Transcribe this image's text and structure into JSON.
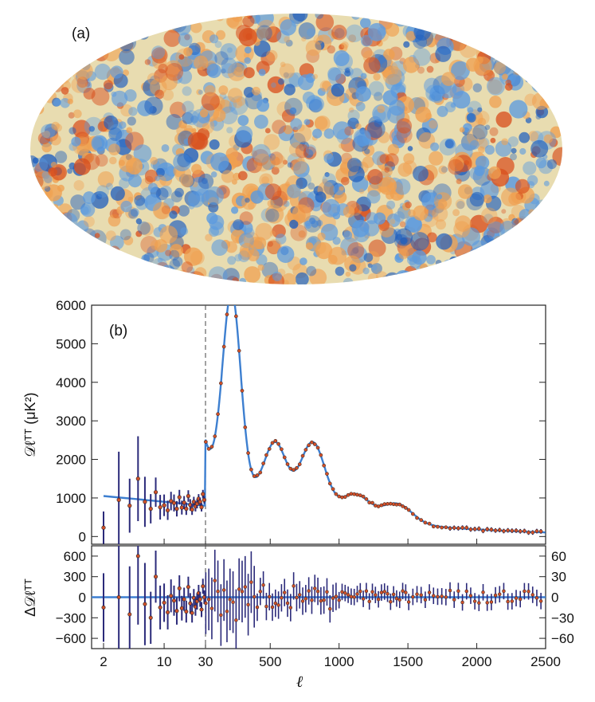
{
  "panel_a": {
    "label": "(a)",
    "image_description_name": "cmb-temperature-map",
    "colors": {
      "cold": "#1f5fbf",
      "mid_cold": "#5a9ae0",
      "neutral": "#e8dcb0",
      "warm": "#f0a050",
      "hot": "#d8501e"
    }
  },
  "chart_data": {
    "type": "scatter",
    "title": "",
    "panel_label": "(b)",
    "xlabel": "ℓ",
    "x_scale": "hybrid: logarithmic for ℓ < 30, linear for ℓ ≥ 30",
    "x_ticks": [
      "2",
      "10",
      "30",
      "500",
      "1000",
      "1500",
      "2000",
      "2500"
    ],
    "x_tick_values": [
      2,
      10,
      30,
      500,
      1000,
      1500,
      2000,
      2500
    ],
    "x_range": [
      2,
      2500
    ],
    "vline_at": 30,
    "top": {
      "ylabel": "𝒟ℓᵀᵀ (μK²)",
      "ylim": [
        -200,
        6000
      ],
      "y_ticks": [
        "0",
        "1000",
        "2000",
        "3000",
        "4000",
        "5000",
        "6000"
      ],
      "y_tick_values": [
        0,
        1000,
        2000,
        3000,
        4000,
        5000,
        6000
      ],
      "model_curve_color": "#3d7fd0",
      "errorbar_color": "#2b2a7a",
      "marker_color": "#d0502a",
      "low_ell_points": [
        {
          "x": 2,
          "y": 230,
          "err": 420
        },
        {
          "x": 3,
          "y": 950,
          "err": 1250
        },
        {
          "x": 4,
          "y": 800,
          "err": 700
        },
        {
          "x": 5,
          "y": 1500,
          "err": 1100
        },
        {
          "x": 6,
          "y": 900,
          "err": 650
        },
        {
          "x": 7,
          "y": 720,
          "err": 380
        },
        {
          "x": 8,
          "y": 1150,
          "err": 380
        },
        {
          "x": 9,
          "y": 760,
          "err": 320
        },
        {
          "x": 10,
          "y": 810,
          "err": 280
        },
        {
          "x": 11,
          "y": 680,
          "err": 250
        },
        {
          "x": 12,
          "y": 920,
          "err": 240
        },
        {
          "x": 13,
          "y": 870,
          "err": 220
        },
        {
          "x": 14,
          "y": 720,
          "err": 200
        },
        {
          "x": 15,
          "y": 1020,
          "err": 190
        },
        {
          "x": 16,
          "y": 750,
          "err": 180
        },
        {
          "x": 17,
          "y": 880,
          "err": 170
        },
        {
          "x": 18,
          "y": 720,
          "err": 160
        },
        {
          "x": 19,
          "y": 1050,
          "err": 150
        },
        {
          "x": 20,
          "y": 820,
          "err": 150
        },
        {
          "x": 21,
          "y": 700,
          "err": 140
        },
        {
          "x": 22,
          "y": 900,
          "err": 130
        },
        {
          "x": 23,
          "y": 780,
          "err": 130
        },
        {
          "x": 24,
          "y": 850,
          "err": 120
        },
        {
          "x": 25,
          "y": 980,
          "err": 120
        },
        {
          "x": 26,
          "y": 900,
          "err": 110
        },
        {
          "x": 27,
          "y": 760,
          "err": 110
        },
        {
          "x": 28,
          "y": 1100,
          "err": 110
        },
        {
          "x": 29,
          "y": 950,
          "err": 100
        }
      ]
    },
    "bottom": {
      "ylabel": "Δ𝒟ℓᵀᵀ",
      "left_y_ticks": [
        "600",
        "300",
        "0",
        "−300",
        "−600"
      ],
      "left_y_tick_values": [
        600,
        300,
        0,
        -300,
        -600
      ],
      "right_y_ticks": [
        "60",
        "30",
        "0",
        "−30",
        "−60"
      ],
      "right_y_tick_values": [
        60,
        30,
        0,
        -30,
        -60
      ],
      "left_ylim": [
        -750,
        750
      ],
      "right_ylim": [
        -75,
        75
      ],
      "low_ell_residuals": [
        {
          "x": 2,
          "y": -150,
          "err": 500
        },
        {
          "x": 3,
          "y": 0,
          "err": 1200
        },
        {
          "x": 4,
          "y": -250,
          "err": 700
        },
        {
          "x": 5,
          "y": 600,
          "err": 1000
        },
        {
          "x": 6,
          "y": -100,
          "err": 600
        },
        {
          "x": 7,
          "y": -300,
          "err": 380
        },
        {
          "x": 8,
          "y": 300,
          "err": 380
        },
        {
          "x": 9,
          "y": -150,
          "err": 320
        },
        {
          "x": 10,
          "y": -80,
          "err": 280
        },
        {
          "x": 11,
          "y": -220,
          "err": 250
        },
        {
          "x": 12,
          "y": 20,
          "err": 240
        },
        {
          "x": 13,
          "y": -50,
          "err": 220
        },
        {
          "x": 14,
          "y": -200,
          "err": 200
        },
        {
          "x": 15,
          "y": 130,
          "err": 190
        },
        {
          "x": 16,
          "y": -160,
          "err": 180
        },
        {
          "x": 17,
          "y": -30,
          "err": 170
        },
        {
          "x": 18,
          "y": -210,
          "err": 160
        },
        {
          "x": 19,
          "y": 150,
          "err": 150
        },
        {
          "x": 20,
          "y": -90,
          "err": 150
        },
        {
          "x": 21,
          "y": -230,
          "err": 140
        },
        {
          "x": 22,
          "y": -10,
          "err": 130
        },
        {
          "x": 23,
          "y": -140,
          "err": 130
        },
        {
          "x": 24,
          "y": -60,
          "err": 120
        },
        {
          "x": 25,
          "y": 60,
          "err": 120
        },
        {
          "x": 26,
          "y": -30,
          "err": 110
        },
        {
          "x": 27,
          "y": -180,
          "err": 110
        },
        {
          "x": 28,
          "y": 160,
          "err": 110
        },
        {
          "x": 29,
          "y": 0,
          "err": 100
        }
      ]
    }
  }
}
